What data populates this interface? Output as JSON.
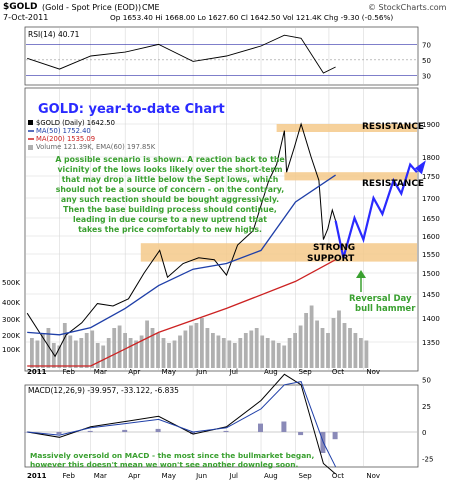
{
  "header": {
    "symbol": "$GOLD",
    "name": "(Gold - Spot Price (EOD))",
    "exchange": "CME",
    "watermark": "© StockCharts.com",
    "date": "7-Oct-2011",
    "ohlc": "Op 1653.40  Hi 1668.00  Lo 1627.60  Cl 1642.50  Vol 121.4K  Chg -9.30 (-0.56%)",
    "chg_down_arrow": "▼"
  },
  "colors": {
    "price_line": "#000000",
    "ma50": "#1f3fa8",
    "ma200": "#cc2222",
    "volume": "#b0b0b0",
    "zone": "#f5c98a",
    "annotation_text": "#3aa030",
    "projection": "#2a2aff",
    "rsi_fill": "#000000",
    "grid": "#d8d8d8"
  },
  "rsi": {
    "label": "RSI(14) 40.71",
    "levels": [
      "70",
      "50",
      "30"
    ]
  },
  "price_panel": {
    "title": "GOLD: year-to-date Chart",
    "legend": [
      {
        "text": "$GOLD (Daily) 1642.50",
        "color": "#000000"
      },
      {
        "text": "MA(50) 1752.40",
        "color": "#1f3fa8"
      },
      {
        "text": "MA(200) 1535.09",
        "color": "#cc2222"
      },
      {
        "text": "Volume 121.39K, EMA(60) 197.85K",
        "color": "#888888"
      }
    ],
    "annotation": "A possible scenario is shown. A reaction back to the vicinity of the lows looks likely over the short-term that may drop a little below the Sept lows, which should not be a source of concern - on the contrary, any such reaction should be bought aggressively. Then the base building process should continue, leading in due course to a new uptrend that takes the price comfortably to new highs.",
    "annotation_lines": [
      "A possible scenario is shown. A reaction back to the",
      "vicinity of the lows looks likely over the short-term",
      "that may drop a little below the Sept lows, which",
      "should not be a source of concern - on the contrary,",
      "any such reaction should be bought aggressively.",
      "Then the base building process should continue,",
      "leading in due course to a new uptrend that",
      "takes the price comfortably to new highs."
    ],
    "resistance_label": "RESISTANCE",
    "support_label_1": "STRONG",
    "support_label_2": "SUPPORT",
    "reversal_label_1": "Reversal Day",
    "reversal_label_2": "bull hammer",
    "y_ticks": [
      "1900",
      "1800",
      "1750",
      "1700",
      "1650",
      "1600",
      "1550",
      "1500",
      "1450",
      "1400",
      "1350"
    ],
    "volume_ticks": [
      "500K",
      "400K",
      "300K",
      "200K",
      "100K"
    ]
  },
  "macd": {
    "label": "MACD(12,26,9) -39.957, -33.122, -6.835",
    "y_ticks": [
      "50",
      "25",
      "0",
      "-25"
    ],
    "annotation": "Massively oversold on MACD - the most since the bullmarket began, however this doesn't mean we won't see another downleg soon.",
    "annotation_lines": [
      "Massively oversold on MACD - the most since the bullmarket began,",
      "however this doesn't mean we won't see another downleg soon."
    ]
  },
  "x_axis": {
    "year_label": "2011",
    "months": [
      "Feb",
      "Mar",
      "Apr",
      "May",
      "Jun",
      "Jul",
      "Aug",
      "Sep",
      "Oct",
      "Nov"
    ]
  },
  "chart_data": {
    "type": "line",
    "title": "GOLD: year-to-date Chart",
    "series": [
      {
        "name": "$GOLD (Daily)",
        "x": [
          "2011-01-03",
          "2011-01-14",
          "2011-01-28",
          "2011-02-07",
          "2011-02-21",
          "2011-03-07",
          "2011-03-21",
          "2011-04-04",
          "2011-04-18",
          "2011-05-02",
          "2011-05-09",
          "2011-05-23",
          "2011-06-06",
          "2011-06-20",
          "2011-07-01",
          "2011-07-11",
          "2011-07-25",
          "2011-08-08",
          "2011-08-15",
          "2011-08-22",
          "2011-08-24",
          "2011-08-31",
          "2011-09-06",
          "2011-09-15",
          "2011-09-22",
          "2011-09-26",
          "2011-09-30",
          "2011-10-04",
          "2011-10-07"
        ],
        "y": [
          1410,
          1370,
          1320,
          1365,
          1390,
          1430,
          1425,
          1440,
          1500,
          1560,
          1490,
          1525,
          1540,
          1535,
          1495,
          1575,
          1615,
          1740,
          1780,
          1880,
          1760,
          1830,
          1900,
          1800,
          1740,
          1590,
          1620,
          1670,
          1642.5
        ]
      },
      {
        "name": "MA(50)",
        "x": [
          "2011-01-03",
          "2011-02-01",
          "2011-03-01",
          "2011-04-01",
          "2011-05-01",
          "2011-06-01",
          "2011-07-01",
          "2011-08-01",
          "2011-09-01",
          "2011-10-07"
        ],
        "y": [
          1370,
          1365,
          1380,
          1420,
          1470,
          1510,
          1525,
          1560,
          1690,
          1752.4
        ]
      },
      {
        "name": "MA(200)",
        "x": [
          "2011-01-03",
          "2011-03-01",
          "2011-05-01",
          "2011-07-01",
          "2011-09-01",
          "2011-10-07"
        ],
        "y": [
          1260,
          1300,
          1370,
          1420,
          1480,
          1535.09
        ]
      },
      {
        "name": "Projection",
        "x": [
          "2011-10-07",
          "2011-10-14",
          "2011-10-24",
          "2011-11-01",
          "2011-11-10",
          "2011-11-18",
          "2011-11-28",
          "2011-12-05",
          "2011-12-13",
          "2011-12-19"
        ],
        "y": [
          1642.5,
          1540,
          1650,
          1590,
          1700,
          1660,
          1740,
          1710,
          1780,
          1760
        ]
      }
    ],
    "rsi": {
      "name": "RSI(14)",
      "x": [
        "2011-01-03",
        "2011-02-01",
        "2011-03-01",
        "2011-04-01",
        "2011-05-01",
        "2011-06-01",
        "2011-07-01",
        "2011-08-01",
        "2011-08-22",
        "2011-09-06",
        "2011-09-26",
        "2011-10-07"
      ],
      "y": [
        52,
        38,
        55,
        60,
        70,
        48,
        55,
        68,
        82,
        78,
        33,
        40.71
      ],
      "levels": [
        30,
        50,
        70
      ]
    },
    "macd": {
      "name": "MACD(12,26,9)",
      "x": [
        "2011-01-03",
        "2011-02-01",
        "2011-03-01",
        "2011-04-01",
        "2011-05-01",
        "2011-06-01",
        "2011-07-01",
        "2011-08-01",
        "2011-08-22",
        "2011-09-06",
        "2011-09-26",
        "2011-10-07"
      ],
      "y": [
        0,
        -5,
        5,
        10,
        15,
        -2,
        5,
        30,
        55,
        45,
        -30,
        -39.957
      ],
      "signal": [
        0,
        -3,
        4,
        8,
        12,
        0,
        4,
        22,
        45,
        48,
        -10,
        -33.122
      ],
      "histogram": [
        0,
        -2,
        1,
        2,
        3,
        -2,
        1,
        8,
        10,
        -3,
        -20,
        -6.835
      ]
    },
    "zones": [
      {
        "label": "RESISTANCE",
        "from": 1880,
        "to": 1900
      },
      {
        "label": "RESISTANCE",
        "from": 1740,
        "to": 1760
      },
      {
        "label": "STRONG SUPPORT",
        "from": 1530,
        "to": 1580
      }
    ],
    "ylim": [
      1300,
      1920
    ]
  }
}
